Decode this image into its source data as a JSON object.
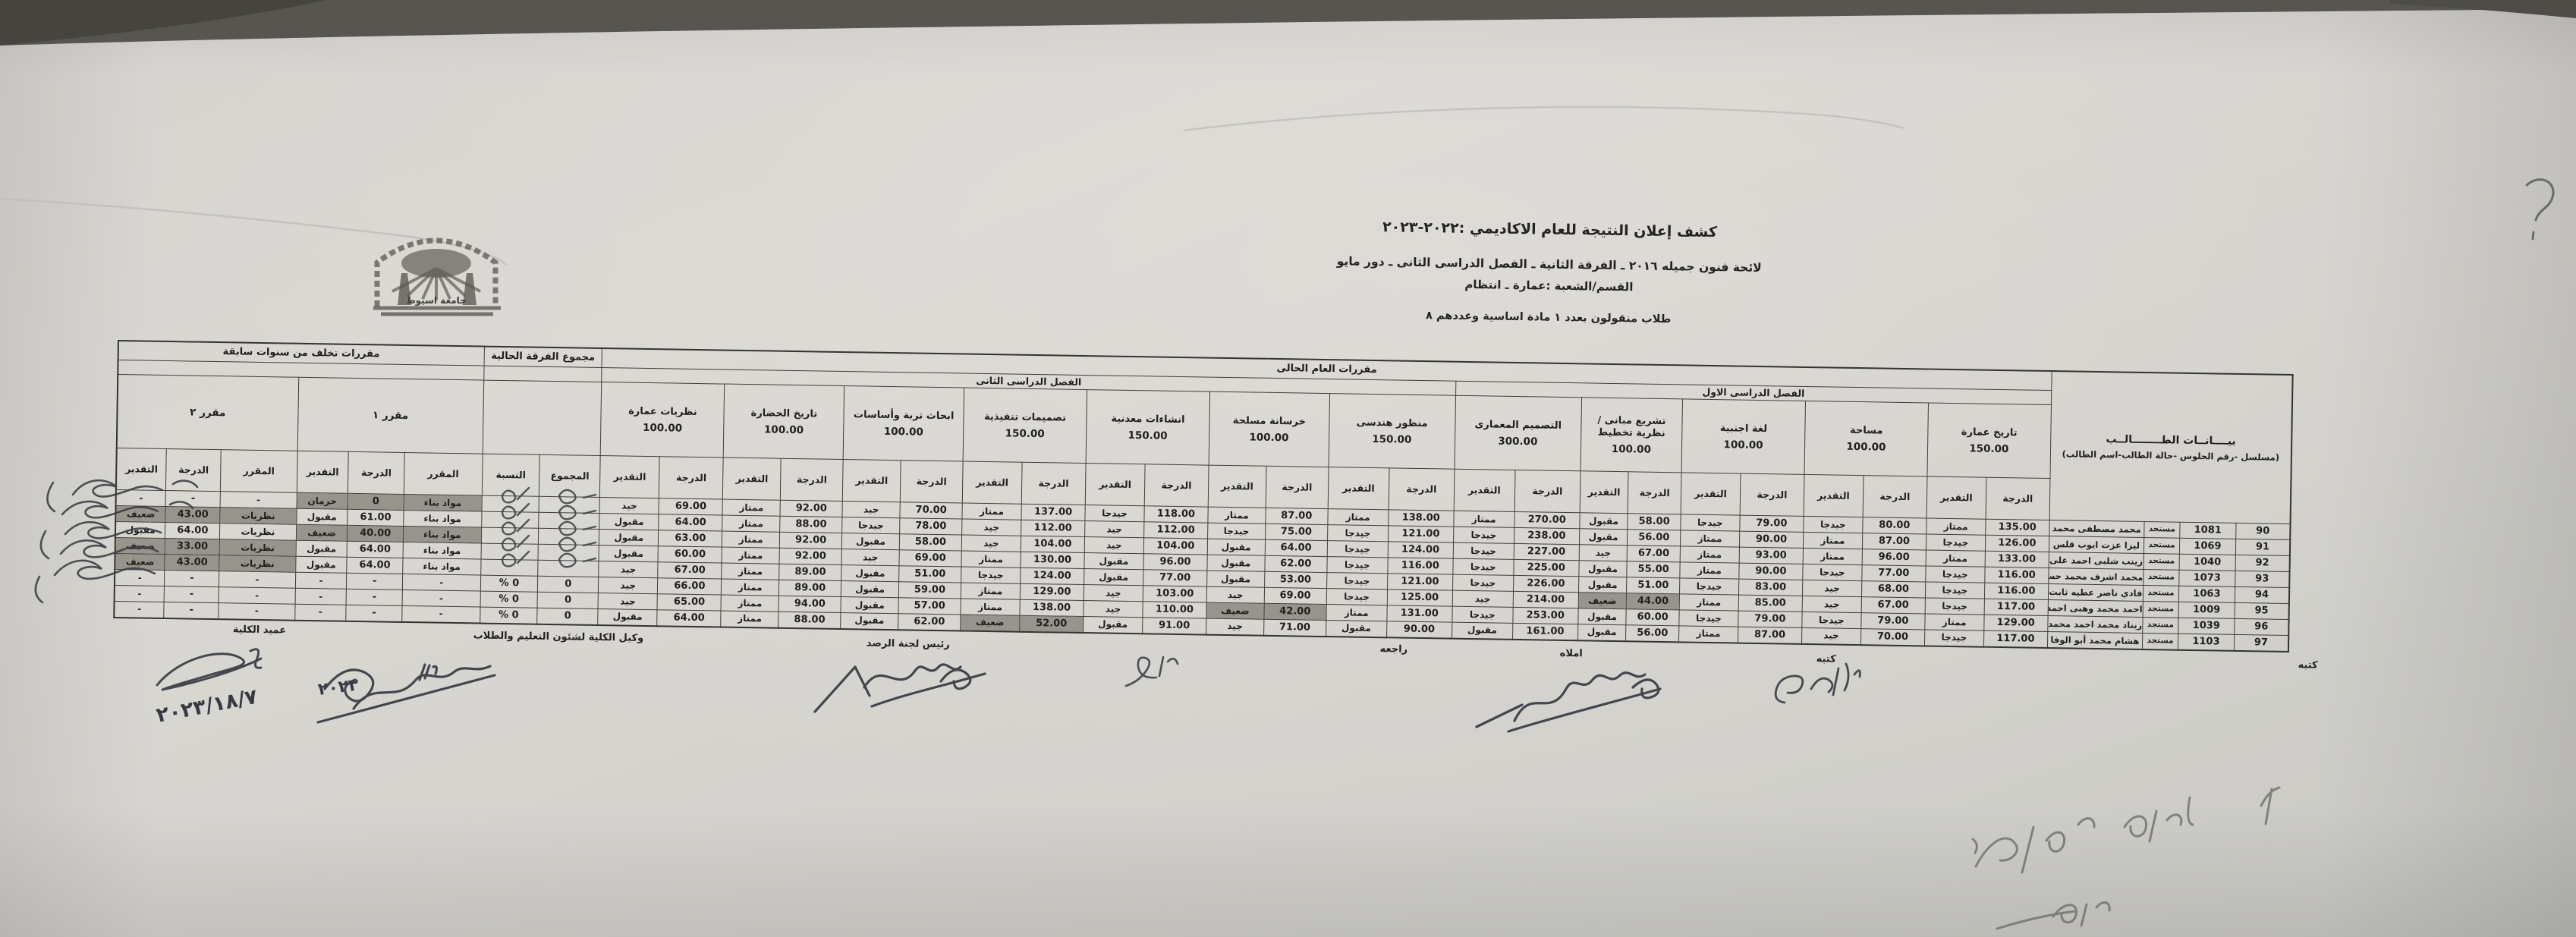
{
  "header": {
    "title": "كشف إعلان النتيجة للعام الاكاديمي :٢٠٢٢-٢٠٢٣",
    "line2": "لائحة فنون جميله ٢٠١٦ ـ الفرقة الثانية ـ الفصل الدراسى الثانى ـ دور مايو",
    "line3": "القسم/الشعبة :عمارة ـ انتظام",
    "line4": "طلاب منقولون بعدد ١ مادة اساسية وعددهم ٨"
  },
  "stamp": {
    "label": "جامعة اسيوط"
  },
  "annotations": {
    "date_note": "٢٠٢٣/١٨/٧",
    "pen_year": "٢٠٢٣",
    "question_mark": "؟"
  },
  "table": {
    "groups": {
      "students": {
        "title": "بيــــانــات الطــــــــالــب",
        "subtitle": "(مسلسل -رقم الجلوس -حالة الطالب-اسم الطالب)"
      },
      "current_year": "مقررات العام الحالى",
      "semester1": "الفصل الدراسى الاول",
      "semester2": "الفصل الدراسى الثانى",
      "year_total": "مجموع الفرقة الحالية",
      "backlog": "مقررات تخلف من سنوات سابقة",
      "course1": "مقرر ١",
      "course2": "مقرر ٢"
    },
    "labels": {
      "grade": "الدرجة",
      "evaluation": "التقدير",
      "total": "المجموع",
      "percent": "النسبة",
      "course": "المقرر"
    },
    "subjects": [
      {
        "name": "تاريخ عمارة",
        "max": "150.00",
        "semester": 1
      },
      {
        "name": "مساحة",
        "max": "100.00",
        "semester": 1
      },
      {
        "name": "لغة اجنبية",
        "max": "100.00",
        "semester": 1
      },
      {
        "name": "تشريع مبانى / نظرية تخطيط",
        "max": "100.00",
        "semester": 1
      },
      {
        "name": "التصميم المعمارى",
        "max": "300.00",
        "semester": 1
      },
      {
        "name": "منظور هندسى",
        "max": "150.00",
        "semester": 2
      },
      {
        "name": "خرسانة مسلحة",
        "max": "100.00",
        "semester": 2
      },
      {
        "name": "انشاءات معدنية",
        "max": "150.00",
        "semester": 2
      },
      {
        "name": "تصميمات تنفيذية",
        "max": "150.00",
        "semester": 2
      },
      {
        "name": "ابحاث تربة وأساسات",
        "max": "100.00",
        "semester": 2
      },
      {
        "name": "تاريخ الحضارة",
        "max": "100.00",
        "semester": 2
      },
      {
        "name": "نظريات عمارة",
        "max": "100.00",
        "semester": 2
      }
    ],
    "rows": [
      {
        "serial": "90",
        "seat": "1081",
        "status": "مستجد",
        "name": "محمد مصطفى محمد",
        "marks": [
          [
            "135.00",
            "ممتاز"
          ],
          [
            "80.00",
            "جيدجا"
          ],
          [
            "79.00",
            "جيدجا"
          ],
          [
            "58.00",
            "مقبول"
          ],
          [
            "270.00",
            "ممتاز"
          ],
          [
            "138.00",
            "ممتاز"
          ],
          [
            "87.00",
            "ممتاز"
          ],
          [
            "118.00",
            "جيدجا"
          ],
          [
            "137.00",
            "ممتاز"
          ],
          [
            "70.00",
            "جيد"
          ],
          [
            "92.00",
            "ممتاز"
          ],
          [
            "69.00",
            "جيد"
          ]
        ],
        "hl": [],
        "total": "",
        "percent": "",
        "course1": {
          "name": "مواد بناء",
          "grade": "0",
          "evaluation": "حرمان",
          "highlight": true
        },
        "course2": {
          "name": "-",
          "grade": "-",
          "evaluation": "-",
          "highlight": false
        }
      },
      {
        "serial": "91",
        "seat": "1069",
        "status": "مستجد",
        "name": "ليزا عزت ايوب قلس",
        "marks": [
          [
            "126.00",
            "جيدجا"
          ],
          [
            "87.00",
            "ممتاز"
          ],
          [
            "90.00",
            "ممتاز"
          ],
          [
            "56.00",
            "مقبول"
          ],
          [
            "238.00",
            "جيدجا"
          ],
          [
            "121.00",
            "جيدجا"
          ],
          [
            "75.00",
            "جيدجا"
          ],
          [
            "112.00",
            "جيد"
          ],
          [
            "112.00",
            "جيد"
          ],
          [
            "78.00",
            "جيدجا"
          ],
          [
            "88.00",
            "ممتاز"
          ],
          [
            "64.00",
            "مقبول"
          ]
        ],
        "hl": [],
        "total": "",
        "percent": "",
        "course1": {
          "name": "مواد بناء",
          "grade": "61.00",
          "evaluation": "مقبول",
          "highlight": false
        },
        "course2": {
          "name": "نظريات",
          "grade": "43.00",
          "evaluation": "ضعيف",
          "highlight": true
        }
      },
      {
        "serial": "92",
        "seat": "1040",
        "status": "مستجد",
        "name": "زينب شلبى احمد على",
        "marks": [
          [
            "133.00",
            "ممتاز"
          ],
          [
            "96.00",
            "ممتاز"
          ],
          [
            "93.00",
            "ممتاز"
          ],
          [
            "67.00",
            "جيد"
          ],
          [
            "227.00",
            "جيدجا"
          ],
          [
            "124.00",
            "جيدجا"
          ],
          [
            "64.00",
            "مقبول"
          ],
          [
            "104.00",
            "جيد"
          ],
          [
            "104.00",
            "جيد"
          ],
          [
            "58.00",
            "مقبول"
          ],
          [
            "92.00",
            "ممتاز"
          ],
          [
            "63.00",
            "مقبول"
          ]
        ],
        "hl": [],
        "total": "",
        "percent": "",
        "course1": {
          "name": "مواد بناء",
          "grade": "40.00",
          "evaluation": "ضعيف",
          "highlight": true
        },
        "course2": {
          "name": "نظريات",
          "grade": "64.00",
          "evaluation": "مقبول",
          "highlight": false
        }
      },
      {
        "serial": "93",
        "seat": "1073",
        "status": "مستجد",
        "name": "محمد اشرف محمد حسان",
        "marks": [
          [
            "116.00",
            "جيدجا"
          ],
          [
            "77.00",
            "جيدجا"
          ],
          [
            "90.00",
            "ممتاز"
          ],
          [
            "55.00",
            "مقبول"
          ],
          [
            "225.00",
            "جيدجا"
          ],
          [
            "116.00",
            "جيدجا"
          ],
          [
            "62.00",
            "مقبول"
          ],
          [
            "96.00",
            "مقبول"
          ],
          [
            "130.00",
            "ممتاز"
          ],
          [
            "69.00",
            "جيد"
          ],
          [
            "92.00",
            "ممتاز"
          ],
          [
            "60.00",
            "مقبول"
          ]
        ],
        "hl": [],
        "total": "",
        "percent": "",
        "course1": {
          "name": "مواد بناء",
          "grade": "64.00",
          "evaluation": "مقبول",
          "highlight": false
        },
        "course2": {
          "name": "نظريات",
          "grade": "33.00",
          "evaluation": "ضعيف",
          "highlight": true
        }
      },
      {
        "serial": "94",
        "seat": "1063",
        "status": "مستجد",
        "name": "فادي ناصر عطيه ثابت",
        "marks": [
          [
            "116.00",
            "جيدجا"
          ],
          [
            "68.00",
            "جيد"
          ],
          [
            "83.00",
            "جيدجا"
          ],
          [
            "51.00",
            "مقبول"
          ],
          [
            "226.00",
            "جيدجا"
          ],
          [
            "121.00",
            "جيدجا"
          ],
          [
            "53.00",
            "مقبول"
          ],
          [
            "77.00",
            "مقبول"
          ],
          [
            "124.00",
            "جيدجا"
          ],
          [
            "51.00",
            "مقبول"
          ],
          [
            "89.00",
            "ممتاز"
          ],
          [
            "67.00",
            "جيد"
          ]
        ],
        "hl": [],
        "total": "",
        "percent": "",
        "course1": {
          "name": "مواد بناء",
          "grade": "64.00",
          "evaluation": "مقبول",
          "highlight": false
        },
        "course2": {
          "name": "نظريات",
          "grade": "43.00",
          "evaluation": "ضعيف",
          "highlight": true
        }
      },
      {
        "serial": "95",
        "seat": "1009",
        "status": "مستجد",
        "name": "احمد محمد وهبى احمد",
        "marks": [
          [
            "117.00",
            "جيدجا"
          ],
          [
            "67.00",
            "جيد"
          ],
          [
            "85.00",
            "ممتاز"
          ],
          [
            "44.00",
            "ضعيف"
          ],
          [
            "214.00",
            "جيد"
          ],
          [
            "125.00",
            "جيدجا"
          ],
          [
            "69.00",
            "جيد"
          ],
          [
            "103.00",
            "جيد"
          ],
          [
            "129.00",
            "ممتاز"
          ],
          [
            "59.00",
            "مقبول"
          ],
          [
            "89.00",
            "ممتاز"
          ],
          [
            "66.00",
            "جيد"
          ]
        ],
        "hl": [
          3
        ],
        "total": "0",
        "percent": "% 0",
        "course1": {
          "name": "-",
          "grade": "-",
          "evaluation": "-",
          "highlight": false
        },
        "course2": {
          "name": "-",
          "grade": "-",
          "evaluation": "-",
          "highlight": false
        }
      },
      {
        "serial": "96",
        "seat": "1039",
        "status": "مستجد",
        "name": "ريناد محمد احمد محمد",
        "marks": [
          [
            "129.00",
            "ممتاز"
          ],
          [
            "79.00",
            "جيدجا"
          ],
          [
            "79.00",
            "جيدجا"
          ],
          [
            "60.00",
            "مقبول"
          ],
          [
            "253.00",
            "جيدجا"
          ],
          [
            "131.00",
            "ممتاز"
          ],
          [
            "42.00",
            "ضعيف"
          ],
          [
            "110.00",
            "جيد"
          ],
          [
            "138.00",
            "ممتاز"
          ],
          [
            "57.00",
            "مقبول"
          ],
          [
            "94.00",
            "ممتاز"
          ],
          [
            "65.00",
            "جيد"
          ]
        ],
        "hl": [
          6
        ],
        "total": "0",
        "percent": "% 0",
        "course1": {
          "name": "-",
          "grade": "-",
          "evaluation": "-",
          "highlight": false
        },
        "course2": {
          "name": "-",
          "grade": "-",
          "evaluation": "-",
          "highlight": false
        }
      },
      {
        "serial": "97",
        "seat": "1103",
        "status": "مستجد",
        "name": "هشام محمد أبو الوفا",
        "marks": [
          [
            "117.00",
            "جيدجا"
          ],
          [
            "70.00",
            "جيد"
          ],
          [
            "87.00",
            "ممتاز"
          ],
          [
            "56.00",
            "مقبول"
          ],
          [
            "161.00",
            "مقبول"
          ],
          [
            "90.00",
            "مقبول"
          ],
          [
            "71.00",
            "جيد"
          ],
          [
            "91.00",
            "مقبول"
          ],
          [
            "52.00",
            "ضعيف"
          ],
          [
            "62.00",
            "مقبول"
          ],
          [
            "88.00",
            "ممتاز"
          ],
          [
            "64.00",
            "مقبول"
          ]
        ],
        "hl": [
          8
        ],
        "total": "0",
        "percent": "% 0",
        "course1": {
          "name": "-",
          "grade": "-",
          "evaluation": "-",
          "highlight": false
        },
        "course2": {
          "name": "-",
          "grade": "-",
          "evaluation": "-",
          "highlight": false
        }
      }
    ]
  },
  "footer": {
    "labels": [
      "عميد الكلية",
      "وكيل الكلية لشئون التعليم والطلاب",
      "رئيس لجنة الرصد",
      "راجعه",
      "املاه",
      "كتبه",
      "كتبه"
    ]
  }
}
